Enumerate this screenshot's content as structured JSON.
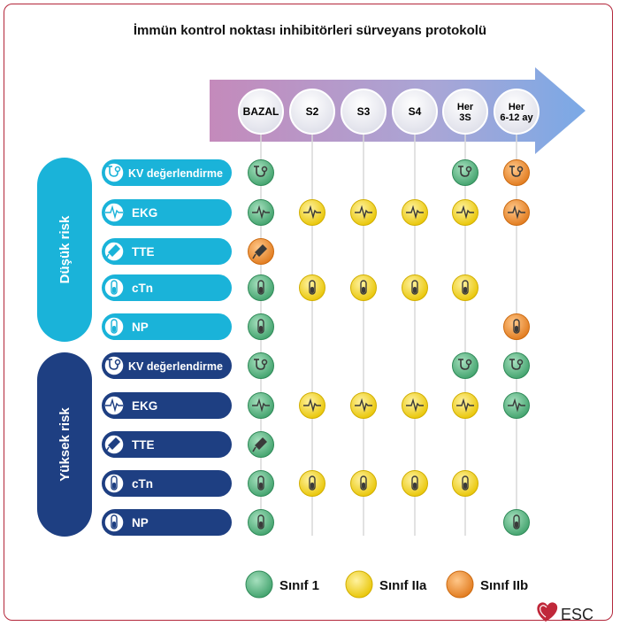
{
  "title": "İmmün kontrol noktası inhibitörleri sürveyans protokolü",
  "timepoints": [
    "BAZAL",
    "S2",
    "S3",
    "S4",
    "Her 3S",
    "Her 6-12 ay"
  ],
  "timepoint_lines": [
    [
      "BAZAL"
    ],
    [
      "S2"
    ],
    [
      "S3"
    ],
    [
      "S4"
    ],
    [
      "Her",
      "3S"
    ],
    [
      "Her",
      "6-12 ay"
    ]
  ],
  "groups": [
    {
      "label": "Düşük risk",
      "color": "#1ab3d9",
      "rows": [
        {
          "label": "KV değerlendirme",
          "icon": "stethoscope-icon",
          "cells": [
            "1",
            null,
            null,
            null,
            "1",
            "IIb"
          ]
        },
        {
          "label": "EKG",
          "icon": "ecg-wave-icon",
          "cells": [
            "1",
            "IIa",
            "IIa",
            "IIa",
            "IIa",
            "IIb"
          ]
        },
        {
          "label": "TTE",
          "icon": "ultrasound-probe-icon",
          "cells": [
            "IIb",
            null,
            null,
            null,
            null,
            null
          ]
        },
        {
          "label": "cTn",
          "icon": "test-tube-icon",
          "cells": [
            "1",
            "IIa",
            "IIa",
            "IIa",
            "IIa",
            null
          ]
        },
        {
          "label": "NP",
          "icon": "test-tube-icon",
          "cells": [
            "1",
            null,
            null,
            null,
            null,
            "IIb"
          ]
        }
      ]
    },
    {
      "label": "Yüksek risk",
      "color": "#1e3f82",
      "rows": [
        {
          "label": "KV değerlendirme",
          "icon": "stethoscope-icon",
          "cells": [
            "1",
            null,
            null,
            null,
            "1",
            "1"
          ]
        },
        {
          "label": "EKG",
          "icon": "ecg-wave-icon",
          "cells": [
            "1",
            "IIa",
            "IIa",
            "IIa",
            "IIa",
            "1"
          ]
        },
        {
          "label": "TTE",
          "icon": "ultrasound-probe-icon",
          "cells": [
            "1",
            null,
            null,
            null,
            null,
            null
          ]
        },
        {
          "label": "cTn",
          "icon": "test-tube-icon",
          "cells": [
            "1",
            "IIa",
            "IIa",
            "IIa",
            "IIa",
            null
          ]
        },
        {
          "label": "NP",
          "icon": "test-tube-icon",
          "cells": [
            "1",
            null,
            null,
            null,
            null,
            "1"
          ]
        }
      ]
    }
  ],
  "legend": [
    {
      "class": "1",
      "label": "Sınıf 1",
      "color": "#3cb371"
    },
    {
      "class": "IIa",
      "label": "Sınıf IIa",
      "color": "#f2d400"
    },
    {
      "class": "IIb",
      "label": "Sınıf IIb",
      "color": "#ef8a1e"
    }
  ],
  "logo": "ESC"
}
